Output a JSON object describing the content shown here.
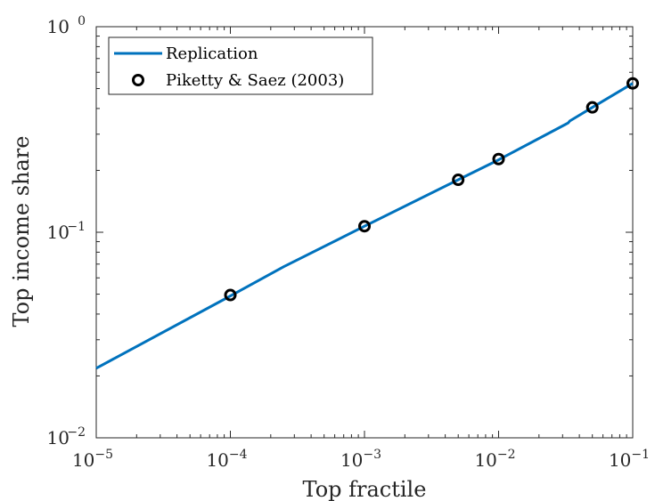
{
  "chart_data": {
    "type": "line",
    "title": "",
    "xlabel": "Top fractile",
    "ylabel": "Top income share",
    "xscale": "log",
    "yscale": "log",
    "xlim": [
      1e-05,
      0.1
    ],
    "ylim": [
      0.01,
      1
    ],
    "xticks": [
      {
        "value": 1e-05,
        "base": "10",
        "exp": "−5"
      },
      {
        "value": 0.0001,
        "base": "10",
        "exp": "−4"
      },
      {
        "value": 0.001,
        "base": "10",
        "exp": "−3"
      },
      {
        "value": 0.01,
        "base": "10",
        "exp": "−2"
      },
      {
        "value": 0.1,
        "base": "10",
        "exp": "−1"
      }
    ],
    "yticks": [
      {
        "value": 0.01,
        "base": "10",
        "exp": "−2"
      },
      {
        "value": 0.1,
        "base": "10",
        "exp": "−1"
      },
      {
        "value": 1,
        "base": "10",
        "exp": "0"
      }
    ],
    "grid": false,
    "legend_position": "top-left",
    "series": [
      {
        "name": "Replication",
        "style": "line",
        "color": "#0072bd",
        "x": [
          1e-05,
          0.0001,
          0.00025,
          0.001,
          0.005,
          0.01,
          0.033,
          0.034,
          0.05,
          0.1
        ],
        "y": [
          0.0218,
          0.049,
          0.068,
          0.107,
          0.18,
          0.225,
          0.34,
          0.348,
          0.405,
          0.53
        ]
      },
      {
        "name": "Piketty & Saez (2003)",
        "style": "markers",
        "marker": "circle",
        "color": "#000000",
        "x": [
          0.0001,
          0.001,
          0.005,
          0.01,
          0.05,
          0.1
        ],
        "y": [
          0.0495,
          0.107,
          0.18,
          0.227,
          0.405,
          0.53
        ]
      }
    ]
  }
}
